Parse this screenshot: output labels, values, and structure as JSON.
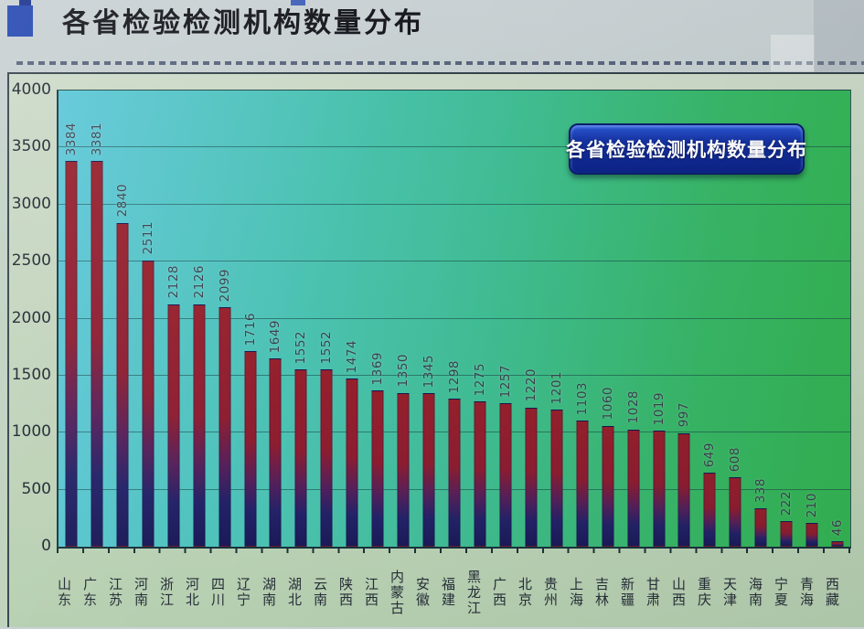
{
  "header": {
    "title": "各省检验检测机构数量分布"
  },
  "chart_data": {
    "type": "bar",
    "title": "各省检验检测机构数量分布",
    "legend_label": "各省检验检测机构数量分布",
    "legend_position": "top-right",
    "categories": [
      "山东",
      "广东",
      "江苏",
      "河南",
      "浙江",
      "河北",
      "四川",
      "辽宁",
      "湖南",
      "湖北",
      "云南",
      "陕西",
      "江西",
      "内蒙古",
      "安徽",
      "福建",
      "黑龙江",
      "广西",
      "北京",
      "贵州",
      "上海",
      "吉林",
      "新疆",
      "甘肃",
      "山西",
      "重庆",
      "天津",
      "海南",
      "宁夏",
      "青海",
      "西藏"
    ],
    "values": [
      3384,
      3381,
      2840,
      2511,
      2128,
      2126,
      2099,
      1716,
      1649,
      1552,
      1552,
      1474,
      1369,
      1350,
      1345,
      1298,
      1275,
      1257,
      1220,
      1201,
      1103,
      1060,
      1028,
      1019,
      997,
      649,
      608,
      338,
      222,
      210,
      46
    ],
    "xlabel": "",
    "ylabel": "",
    "ylim": [
      0,
      4000
    ],
    "yticks": [
      0,
      500,
      1000,
      1500,
      2000,
      2500,
      3000,
      3500,
      4000
    ],
    "grid": true,
    "colors": {
      "bar_top": "#96202c",
      "bar_bottom": "#1b1a58",
      "plot_bg_left": "#5cc6d8",
      "plot_bg_right": "#34b452",
      "legend_bg": "#14319f",
      "legend_text": "#ffffff",
      "title_text": "#15171d"
    }
  }
}
